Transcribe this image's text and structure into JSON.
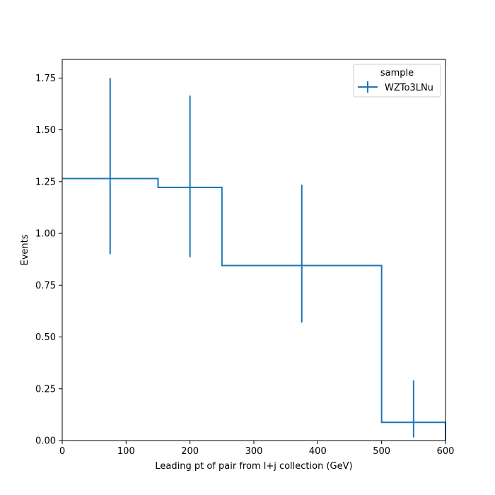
{
  "chart_data": {
    "type": "histogram",
    "title": "",
    "xlabel": "Leading pt of pair from l+j collection (GeV)",
    "ylabel": "Events",
    "xlim": [
      0,
      600
    ],
    "ylim": [
      0,
      1.84
    ],
    "grid": false,
    "x_ticks": [
      0,
      100,
      200,
      300,
      400,
      500,
      600
    ],
    "x_tick_labels": [
      "0",
      "100",
      "200",
      "300",
      "400",
      "500",
      "600"
    ],
    "y_ticks": [
      0,
      0.25,
      0.5,
      0.75,
      1.0,
      1.25,
      1.5,
      1.75
    ],
    "y_tick_labels": [
      "0.00",
      "0.25",
      "0.50",
      "0.75",
      "1.00",
      "1.25",
      "1.50",
      "1.75"
    ],
    "bin_edges": [
      0,
      150,
      250,
      500,
      600
    ],
    "legend": {
      "title": "sample",
      "placement": "top-right"
    },
    "series": [
      {
        "name": "WZTo3LNu",
        "color": "#1f77b4",
        "values": [
          1.265,
          1.222,
          0.845,
          0.088
        ],
        "bin_centers": [
          75,
          200,
          375,
          550
        ],
        "err_low": [
          0.9,
          0.885,
          0.57,
          0.015
        ],
        "err_high": [
          1.75,
          1.665,
          1.235,
          0.29
        ]
      }
    ]
  }
}
